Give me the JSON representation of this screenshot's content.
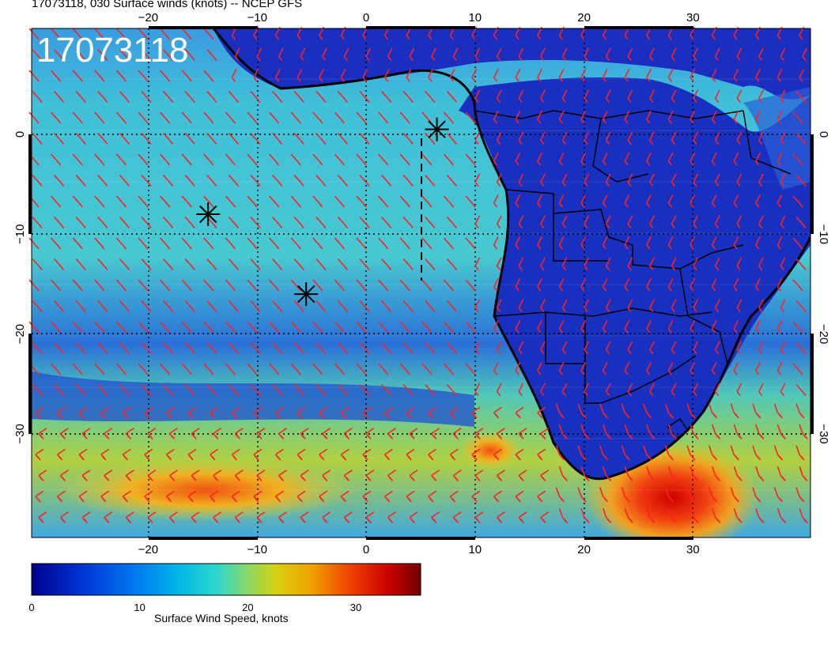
{
  "title": "17073118, 030 Surface winds (knots) -- NCEP GFS",
  "timestamp": "17073118",
  "axes": {
    "x_ticks": [
      "−20",
      "−10",
      "0",
      "10",
      "20",
      "30"
    ],
    "x_values": [
      -20,
      -10,
      0,
      10,
      20,
      30
    ],
    "y_ticks": [
      "0",
      "−10",
      "−20",
      "−30"
    ],
    "y_values": [
      0,
      -10,
      -20,
      -30
    ]
  },
  "colorbar": {
    "label": "Surface Wind Speed, knots",
    "ticks": [
      "0",
      "10",
      "20",
      "30"
    ],
    "tick_values": [
      0,
      10,
      20,
      30
    ],
    "range": [
      0,
      36
    ],
    "colors": [
      "#00008b",
      "#0020c0",
      "#0060e0",
      "#00a8e8",
      "#20d0d0",
      "#60d890",
      "#b8d020",
      "#f0b000",
      "#f06000",
      "#d80000",
      "#800000"
    ]
  },
  "markers": [
    {
      "name": "star-1",
      "lon": -14.5,
      "lat": -8
    },
    {
      "name": "star-2",
      "lon": -5.5,
      "lat": -16
    },
    {
      "name": "star-3",
      "lon": 6.5,
      "lat": 0.5
    }
  ],
  "colors": {
    "barb": "#ff2020",
    "ocean_low": "#2040d0",
    "ocean_mid": "#30c8d8",
    "land": "#1a30c0",
    "high_wind": "#e01010"
  }
}
